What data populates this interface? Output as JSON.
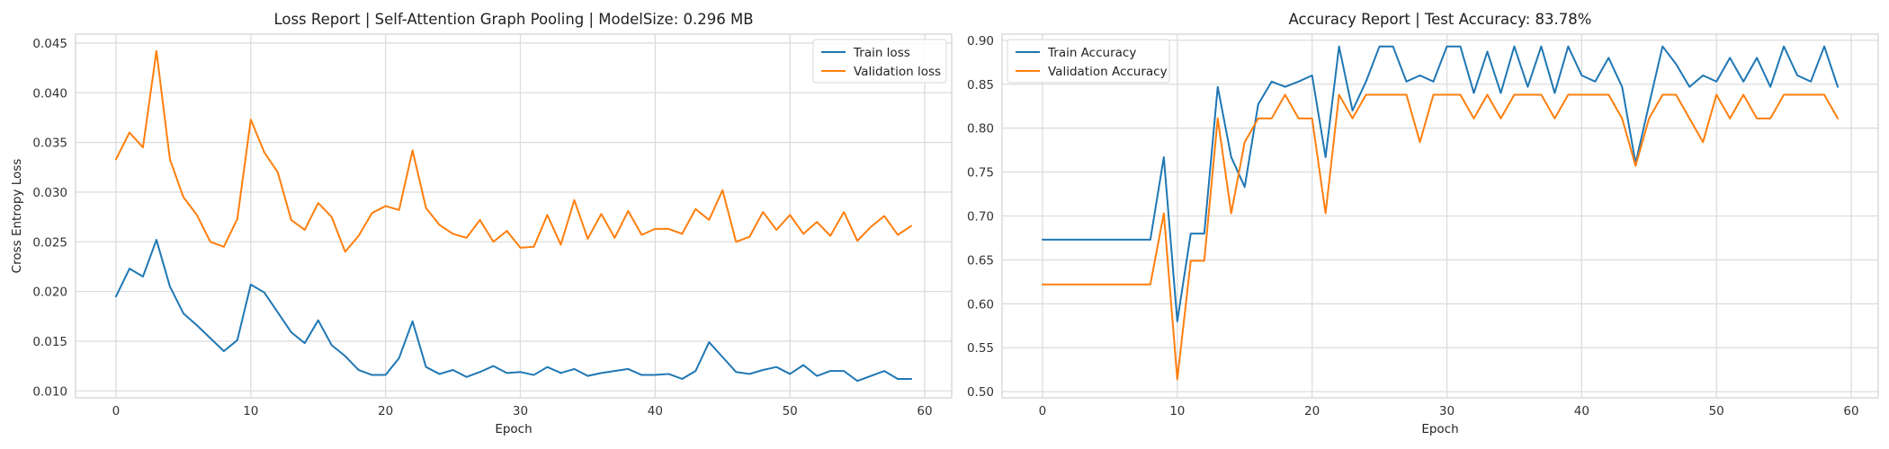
{
  "chart_data": [
    {
      "type": "line",
      "title": "Loss Report | Self-Attention Graph Pooling | ModelSize: 0.296 MB",
      "xlabel": "Epoch",
      "ylabel": "Cross Entropy Loss",
      "xlim": [
        -3,
        62
      ],
      "ylim": [
        0.0093,
        0.0459
      ],
      "xticks": [
        0,
        10,
        20,
        30,
        40,
        50,
        60
      ],
      "xtick_labels": [
        "0",
        "10",
        "20",
        "30",
        "40",
        "50",
        "60"
      ],
      "yticks": [
        0.01,
        0.015,
        0.02,
        0.025,
        0.03,
        0.035,
        0.04,
        0.045
      ],
      "ytick_labels": [
        "0.010",
        "0.015",
        "0.020",
        "0.025",
        "0.030",
        "0.035",
        "0.040",
        "0.045"
      ],
      "grid": true,
      "legend_position": "top-right",
      "x": [
        0,
        1,
        2,
        3,
        4,
        5,
        6,
        7,
        8,
        9,
        10,
        11,
        12,
        13,
        14,
        15,
        16,
        17,
        18,
        19,
        20,
        21,
        22,
        23,
        24,
        25,
        26,
        27,
        28,
        29,
        30,
        31,
        32,
        33,
        34,
        35,
        36,
        37,
        38,
        39,
        40,
        41,
        42,
        43,
        44,
        45,
        46,
        47,
        48,
        49,
        50,
        51,
        52,
        53,
        54,
        55,
        56,
        57,
        58,
        59
      ],
      "series": [
        {
          "name": "Train loss",
          "color": "#1f77b4",
          "values": [
            0.0195,
            0.0223,
            0.0215,
            0.0252,
            0.0205,
            0.0178,
            0.0166,
            0.0153,
            0.014,
            0.0151,
            0.0207,
            0.0199,
            0.0179,
            0.0159,
            0.0148,
            0.0171,
            0.0146,
            0.0135,
            0.0121,
            0.0116,
            0.0116,
            0.0133,
            0.017,
            0.0124,
            0.0117,
            0.0121,
            0.0114,
            0.0119,
            0.0125,
            0.0118,
            0.0119,
            0.0116,
            0.0124,
            0.0118,
            0.0122,
            0.0115,
            0.0118,
            0.012,
            0.0122,
            0.0116,
            0.0116,
            0.0117,
            0.0112,
            0.012,
            0.0149,
            0.0134,
            0.0119,
            0.0117,
            0.0121,
            0.0124,
            0.0117,
            0.0126,
            0.0115,
            0.012,
            0.012,
            0.011,
            0.0115,
            0.012,
            0.0112,
            0.0112
          ]
        },
        {
          "name": "Validation loss",
          "color": "#ff7f0e",
          "values": [
            0.0333,
            0.036,
            0.0345,
            0.0442,
            0.0333,
            0.0295,
            0.0277,
            0.025,
            0.0245,
            0.0273,
            0.0373,
            0.034,
            0.032,
            0.0272,
            0.0262,
            0.0289,
            0.0275,
            0.024,
            0.0256,
            0.0279,
            0.0286,
            0.0282,
            0.0342,
            0.0284,
            0.0267,
            0.0258,
            0.0254,
            0.0272,
            0.025,
            0.0261,
            0.0244,
            0.0245,
            0.0277,
            0.0247,
            0.0292,
            0.0253,
            0.0278,
            0.0254,
            0.0281,
            0.0257,
            0.0263,
            0.0263,
            0.0258,
            0.0283,
            0.0272,
            0.0302,
            0.025,
            0.0255,
            0.028,
            0.0262,
            0.0277,
            0.0258,
            0.027,
            0.0256,
            0.028,
            0.0251,
            0.0265,
            0.0276,
            0.0257,
            0.0266
          ]
        }
      ]
    },
    {
      "type": "line",
      "title": "Accuracy Report | Test Accuracy: 83.78%",
      "xlabel": "Epoch",
      "ylabel": "",
      "xlim": [
        -3,
        62
      ],
      "ylim": [
        0.493,
        0.907
      ],
      "xticks": [
        0,
        10,
        20,
        30,
        40,
        50,
        60
      ],
      "xtick_labels": [
        "0",
        "10",
        "20",
        "30",
        "40",
        "50",
        "60"
      ],
      "yticks": [
        0.5,
        0.55,
        0.6,
        0.65,
        0.7,
        0.75,
        0.8,
        0.85,
        0.9
      ],
      "ytick_labels": [
        "0.50",
        "0.55",
        "0.60",
        "0.65",
        "0.70",
        "0.75",
        "0.80",
        "0.85",
        "0.90"
      ],
      "grid": true,
      "legend_position": "top-left",
      "x": [
        0,
        1,
        2,
        3,
        4,
        5,
        6,
        7,
        8,
        9,
        10,
        11,
        12,
        13,
        14,
        15,
        16,
        17,
        18,
        19,
        20,
        21,
        22,
        23,
        24,
        25,
        26,
        27,
        28,
        29,
        30,
        31,
        32,
        33,
        34,
        35,
        36,
        37,
        38,
        39,
        40,
        41,
        42,
        43,
        44,
        45,
        46,
        47,
        48,
        49,
        50,
        51,
        52,
        53,
        54,
        55,
        56,
        57,
        58,
        59
      ],
      "series": [
        {
          "name": "Train Accuracy",
          "color": "#1f77b4",
          "values": [
            0.673,
            0.673,
            0.673,
            0.673,
            0.673,
            0.673,
            0.673,
            0.673,
            0.673,
            0.767,
            0.58,
            0.68,
            0.68,
            0.847,
            0.767,
            0.733,
            0.827,
            0.853,
            0.847,
            0.853,
            0.86,
            0.767,
            0.893,
            0.82,
            0.853,
            0.893,
            0.893,
            0.853,
            0.86,
            0.853,
            0.893,
            0.893,
            0.84,
            0.887,
            0.84,
            0.893,
            0.847,
            0.893,
            0.84,
            0.893,
            0.86,
            0.853,
            0.88,
            0.847,
            0.76,
            0.827,
            0.893,
            0.873,
            0.847,
            0.86,
            0.853,
            0.88,
            0.853,
            0.88,
            0.847,
            0.893,
            0.86,
            0.853,
            0.893,
            0.847
          ]
        },
        {
          "name": "Validation Accuracy",
          "color": "#ff7f0e",
          "values": [
            0.622,
            0.622,
            0.622,
            0.622,
            0.622,
            0.622,
            0.622,
            0.622,
            0.622,
            0.703,
            0.514,
            0.649,
            0.649,
            0.811,
            0.703,
            0.784,
            0.811,
            0.811,
            0.838,
            0.811,
            0.811,
            0.703,
            0.838,
            0.811,
            0.838,
            0.838,
            0.838,
            0.838,
            0.784,
            0.838,
            0.838,
            0.838,
            0.811,
            0.838,
            0.811,
            0.838,
            0.838,
            0.838,
            0.811,
            0.838,
            0.838,
            0.838,
            0.838,
            0.811,
            0.757,
            0.811,
            0.838,
            0.838,
            0.811,
            0.784,
            0.838,
            0.811,
            0.838,
            0.811,
            0.811,
            0.838,
            0.838,
            0.838,
            0.838,
            0.811
          ]
        }
      ]
    }
  ]
}
